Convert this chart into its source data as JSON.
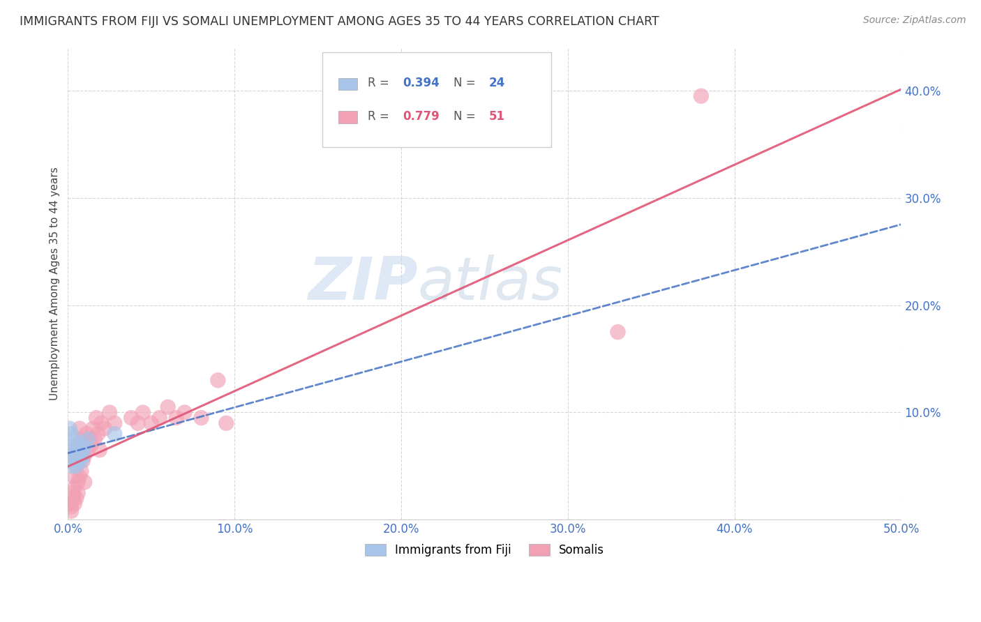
{
  "title": "IMMIGRANTS FROM FIJI VS SOMALI UNEMPLOYMENT AMONG AGES 35 TO 44 YEARS CORRELATION CHART",
  "source": "Source: ZipAtlas.com",
  "ylabel": "Unemployment Among Ages 35 to 44 years",
  "xlim": [
    0.0,
    0.5
  ],
  "ylim": [
    0.0,
    0.44
  ],
  "fiji_R": 0.394,
  "fiji_N": 24,
  "somali_R": 0.779,
  "somali_N": 51,
  "fiji_color": "#a8c4e8",
  "somali_color": "#f2a0b4",
  "fiji_line_color": "#4472c4",
  "somali_line_color": "#e05575",
  "watermark_zip": "ZIP",
  "watermark_atlas": "atlas",
  "fiji_x": [
    0.001,
    0.002,
    0.002,
    0.003,
    0.003,
    0.003,
    0.004,
    0.004,
    0.004,
    0.005,
    0.005,
    0.005,
    0.005,
    0.006,
    0.006,
    0.006,
    0.007,
    0.007,
    0.008,
    0.008,
    0.009,
    0.01,
    0.012,
    0.028
  ],
  "fiji_y": [
    0.085,
    0.08,
    0.075,
    0.05,
    0.06,
    0.065,
    0.055,
    0.06,
    0.07,
    0.05,
    0.058,
    0.062,
    0.065,
    0.055,
    0.06,
    0.068,
    0.062,
    0.072,
    0.055,
    0.065,
    0.06,
    0.068,
    0.075,
    0.08
  ],
  "somali_x": [
    0.001,
    0.002,
    0.002,
    0.003,
    0.003,
    0.004,
    0.004,
    0.004,
    0.005,
    0.005,
    0.005,
    0.006,
    0.006,
    0.006,
    0.007,
    0.007,
    0.007,
    0.008,
    0.008,
    0.008,
    0.009,
    0.009,
    0.01,
    0.01,
    0.01,
    0.011,
    0.012,
    0.013,
    0.014,
    0.015,
    0.016,
    0.017,
    0.018,
    0.019,
    0.02,
    0.022,
    0.025,
    0.028,
    0.038,
    0.042,
    0.045,
    0.05,
    0.055,
    0.06,
    0.065,
    0.07,
    0.08,
    0.09,
    0.095,
    0.33,
    0.38
  ],
  "somali_y": [
    0.015,
    0.008,
    0.012,
    0.02,
    0.025,
    0.015,
    0.03,
    0.04,
    0.02,
    0.05,
    0.06,
    0.025,
    0.035,
    0.055,
    0.04,
    0.07,
    0.085,
    0.045,
    0.06,
    0.075,
    0.055,
    0.065,
    0.06,
    0.035,
    0.07,
    0.08,
    0.065,
    0.075,
    0.07,
    0.085,
    0.075,
    0.095,
    0.08,
    0.065,
    0.09,
    0.085,
    0.1,
    0.09,
    0.095,
    0.09,
    0.1,
    0.09,
    0.095,
    0.105,
    0.095,
    0.1,
    0.095,
    0.13,
    0.09,
    0.175,
    0.395
  ],
  "xtick_labels": [
    "0.0%",
    "10.0%",
    "20.0%",
    "30.0%",
    "40.0%",
    "50.0%"
  ],
  "xtick_values": [
    0.0,
    0.1,
    0.2,
    0.3,
    0.4,
    0.5
  ],
  "ytick_labels": [
    "10.0%",
    "20.0%",
    "30.0%",
    "40.0%"
  ],
  "ytick_values": [
    0.1,
    0.2,
    0.3,
    0.4
  ],
  "grid_color": "#cccccc",
  "background_color": "#ffffff",
  "x_tick_color": "#4472c4",
  "y_tick_color": "#4472c4",
  "title_color": "#333333",
  "source_color": "#888888"
}
